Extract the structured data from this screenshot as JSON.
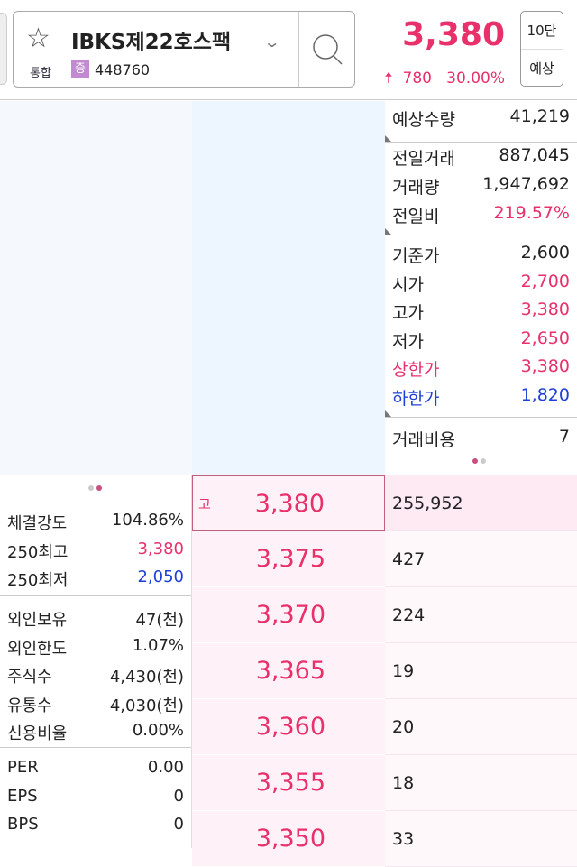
{
  "header": {
    "stock_name": "IBKS제22호스팩",
    "market": "통합",
    "badge": "증",
    "code": "448760",
    "price": "3,380",
    "change": "780",
    "change_pct": "30.00%",
    "btn_levels": "10단",
    "btn_expected": "예상"
  },
  "info": {
    "expected": {
      "label": "예상수량",
      "value": "41,219"
    },
    "group1": [
      {
        "label": "전일거래",
        "value": "887,045"
      },
      {
        "label": "거래량",
        "value": "1,947,692"
      },
      {
        "label": "전일비",
        "value": "219.57%"
      }
    ],
    "group2": [
      {
        "label": "기준가",
        "value": "2,600"
      },
      {
        "label": "시가",
        "value": "2,700"
      },
      {
        "label": "고가",
        "value": "3,380"
      },
      {
        "label": "저가",
        "value": "2,650"
      },
      {
        "label": "상한가",
        "value": "3,380"
      },
      {
        "label": "하한가",
        "value": "1,820"
      }
    ],
    "cost": {
      "label": "거래비용",
      "value": "7"
    }
  },
  "left": {
    "g1": [
      {
        "label": "체결강도",
        "value": "104.86%"
      },
      {
        "label": "250최고",
        "value": "3,380"
      },
      {
        "label": "250최저",
        "value": "2,050"
      }
    ],
    "g2": [
      {
        "label": "외인보유",
        "value": "47(천)"
      },
      {
        "label": "외인한도",
        "value": "1.07%"
      },
      {
        "label": "주식수",
        "value": "4,430(천)"
      },
      {
        "label": "유통수",
        "value": "4,030(천)"
      },
      {
        "label": "신용비율",
        "value": "0.00%"
      }
    ],
    "g3": [
      {
        "label": "PER",
        "value": "0.00"
      },
      {
        "label": "EPS",
        "value": "0"
      },
      {
        "label": "BPS",
        "value": "0"
      }
    ]
  },
  "orderbook": {
    "high_tag": "고",
    "rows": [
      {
        "price": "3,380",
        "qty": "255,952"
      },
      {
        "price": "3,375",
        "qty": "427"
      },
      {
        "price": "3,370",
        "qty": "224"
      },
      {
        "price": "3,365",
        "qty": "19"
      },
      {
        "price": "3,360",
        "qty": "20"
      },
      {
        "price": "3,355",
        "qty": "18"
      },
      {
        "price": "3,350",
        "qty": "33"
      }
    ]
  },
  "colors": {
    "up": "#e8306a",
    "down": "#1f3fd6"
  }
}
